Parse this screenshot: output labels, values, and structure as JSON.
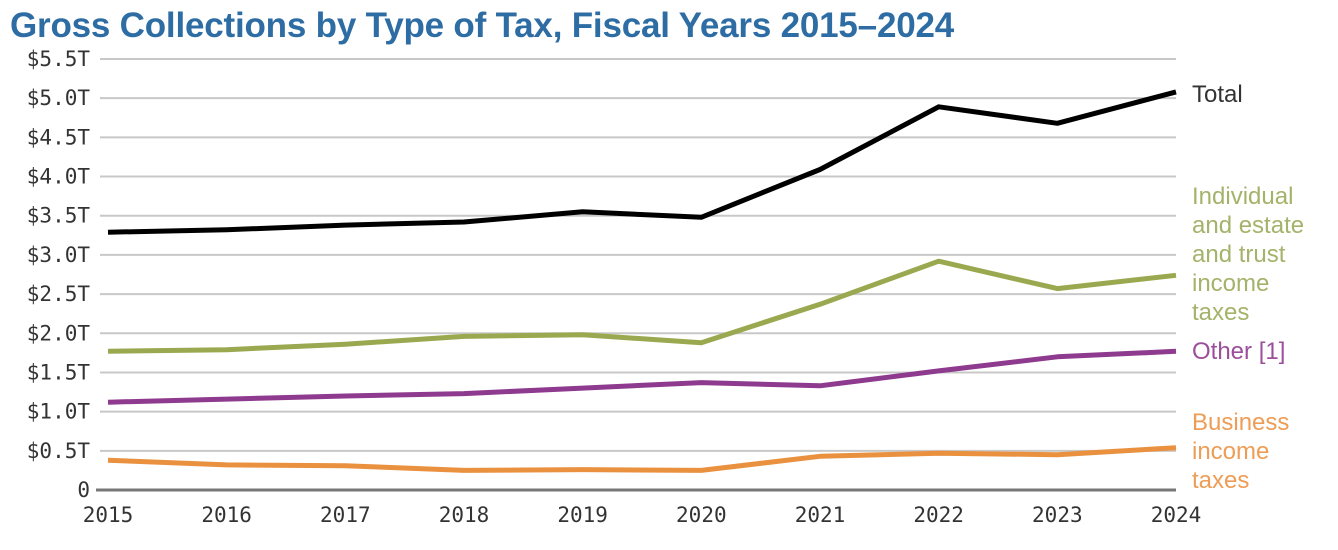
{
  "chart_data": {
    "type": "line",
    "title": "Gross Collections by Type of Tax, Fiscal Years 2015–2024",
    "xlabel": "",
    "ylabel": "",
    "x": [
      "2015",
      "2016",
      "2017",
      "2018",
      "2019",
      "2020",
      "2021",
      "2022",
      "2023",
      "2024"
    ],
    "ylim": [
      0,
      5.5
    ],
    "yticks": [
      0,
      0.5,
      1.0,
      1.5,
      2.0,
      2.5,
      3.0,
      3.5,
      4.0,
      4.5,
      5.0,
      5.5
    ],
    "ytick_labels": [
      "0",
      "$0.5T",
      "$1.0T",
      "$1.5T",
      "$2.0T",
      "$2.5T",
      "$3.0T",
      "$3.5T",
      "$4.0T",
      "$4.5T",
      "$5.0T",
      "$5.5T"
    ],
    "grid": true,
    "legend": "inline-right",
    "units": "trillions of dollars",
    "series": [
      {
        "name": "Total",
        "label_lines": [
          "Total"
        ],
        "color": "#000000",
        "label_color": "#333333",
        "values": [
          3.29,
          3.32,
          3.38,
          3.42,
          3.55,
          3.48,
          4.09,
          4.89,
          4.68,
          5.08
        ]
      },
      {
        "name": "Individual and estate and trust income taxes",
        "label_lines": [
          "Individual",
          "and estate",
          "and trust",
          "income",
          "taxes"
        ],
        "color": "#9aa84f",
        "label_color": "#a4b26a",
        "values": [
          1.77,
          1.79,
          1.86,
          1.96,
          1.98,
          1.88,
          2.37,
          2.92,
          2.57,
          2.74
        ]
      },
      {
        "name": "Other [1]",
        "label_lines": [
          "Other [1]"
        ],
        "color": "#8e3a8e",
        "label_color": "#9b4f9b",
        "values": [
          1.12,
          1.16,
          1.2,
          1.23,
          1.3,
          1.37,
          1.33,
          1.52,
          1.7,
          1.77
        ]
      },
      {
        "name": "Business income taxes",
        "label_lines": [
          "Business",
          "income",
          "taxes"
        ],
        "color": "#ea9140",
        "label_color": "#ee9d56",
        "values": [
          0.38,
          0.32,
          0.31,
          0.25,
          0.26,
          0.25,
          0.43,
          0.47,
          0.45,
          0.54
        ]
      }
    ]
  }
}
